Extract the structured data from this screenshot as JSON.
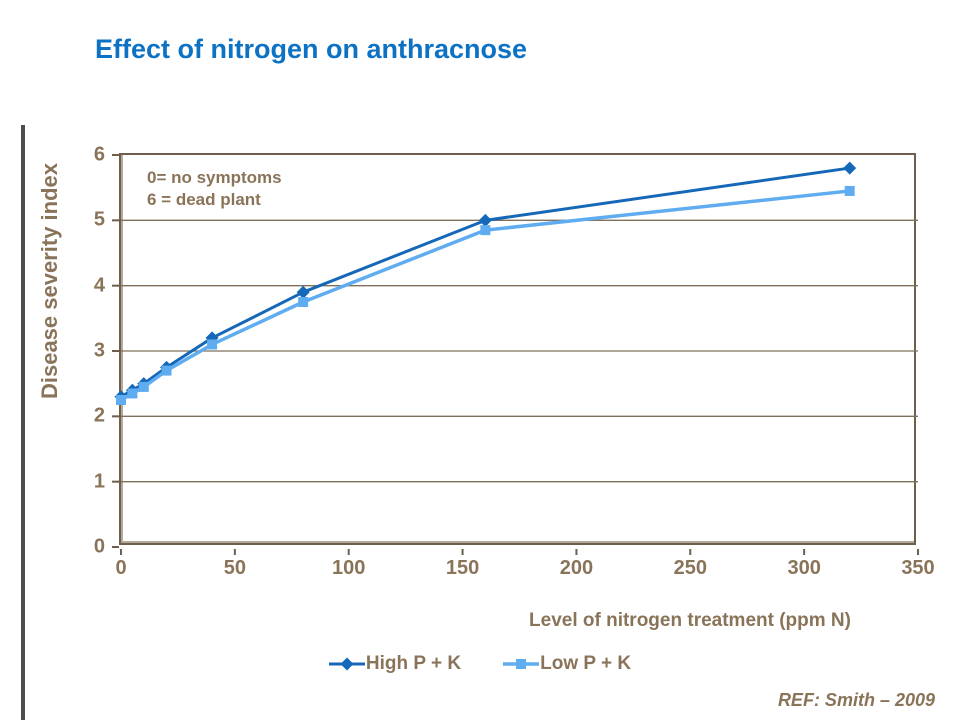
{
  "title": "Effect of nitrogen on anthracnose",
  "annotation": {
    "line1": "0= no symptoms",
    "line2": "6 = dead plant"
  },
  "reference": "REF: Smith – 2009",
  "colors": {
    "title_blue": "#0d72c4",
    "text_brown": "#8a7459",
    "frame_brown": "#6e5e4b",
    "gridline_brown": "#7f6f5b",
    "series_high": "#1568b8",
    "series_low": "#5fadf0"
  },
  "chart_data": {
    "type": "line",
    "title": "Effect of nitrogen on anthracnose",
    "xlabel": "Level of nitrogen treatment (ppm N)",
    "ylabel": "Disease severity index",
    "x": [
      0,
      5,
      10,
      20,
      40,
      80,
      160,
      320
    ],
    "series": [
      {
        "name": "High P + K",
        "color": "#1568b8",
        "marker": "diamond",
        "values": [
          2.3,
          2.4,
          2.5,
          2.75,
          3.2,
          3.9,
          5.0,
          5.8
        ]
      },
      {
        "name": "Low P + K",
        "color": "#5fadf0",
        "marker": "square",
        "values": [
          2.25,
          2.35,
          2.45,
          2.7,
          3.1,
          3.75,
          4.85,
          5.45
        ]
      }
    ],
    "xlim": [
      0,
      350
    ],
    "ylim": [
      0,
      6
    ],
    "x_ticks": [
      0,
      50,
      100,
      150,
      200,
      250,
      300,
      350
    ],
    "y_ticks": [
      0,
      1,
      2,
      3,
      4,
      5,
      6
    ],
    "grid": "horizontal",
    "legend_position": "bottom"
  }
}
